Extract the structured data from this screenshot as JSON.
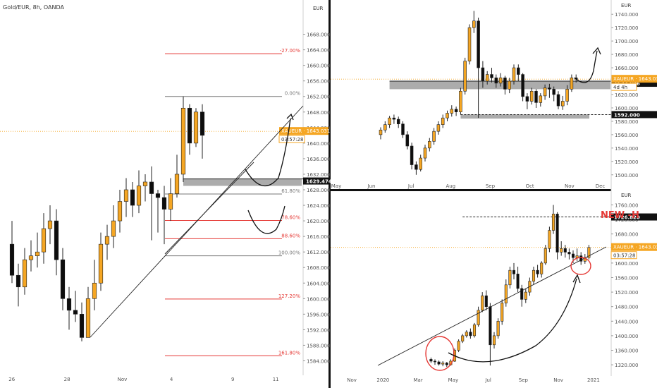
{
  "colors": {
    "up": "#f5a623",
    "down": "#0d0d0d",
    "wick": "#222222",
    "fib_red": "#e53935",
    "fib_gray": "#777777",
    "zone": "#9e9e9e",
    "separator": "#111111",
    "axis_text": "#555555",
    "price_tag": "#f5a623",
    "new_high": "#e53935"
  },
  "chart_data": [
    {
      "id": "left",
      "type": "candlestick",
      "title": "Gold/EUR, 8h, OANDA",
      "currency_label": "EUR",
      "ylim": [
        1581,
        1675
      ],
      "y_ticks": [
        {
          "v": 1668,
          "label": "1668.000"
        },
        {
          "v": 1664,
          "label": "1664.000"
        },
        {
          "v": 1660,
          "label": "1660.000"
        },
        {
          "v": 1656,
          "label": "1656.000"
        },
        {
          "v": 1652,
          "label": "1652.000"
        },
        {
          "v": 1648,
          "label": "1648.000"
        },
        {
          "v": 1644,
          "label": "1644.000"
        },
        {
          "v": 1640,
          "label": "1640.000"
        },
        {
          "v": 1636,
          "label": "1636.000"
        },
        {
          "v": 1632,
          "label": "1632.000"
        },
        {
          "v": 1628,
          "label": "1628.000"
        },
        {
          "v": 1624,
          "label": "1624.000"
        },
        {
          "v": 1620,
          "label": "1620.000"
        },
        {
          "v": 1616,
          "label": "1616.000"
        },
        {
          "v": 1612,
          "label": "1612.000"
        },
        {
          "v": 1608,
          "label": "1608.000"
        },
        {
          "v": 1604,
          "label": "1604.000"
        },
        {
          "v": 1600,
          "label": "1600.000"
        },
        {
          "v": 1596,
          "label": "1596.000"
        },
        {
          "v": 1592,
          "label": "1592.000"
        },
        {
          "v": 1588,
          "label": "1588.000"
        },
        {
          "v": 1584,
          "label": "1584.000"
        }
      ],
      "x_ticks": [
        {
          "i": 1,
          "label": "26"
        },
        {
          "i": 10,
          "label": "28"
        },
        {
          "i": 19,
          "label": "Nov"
        },
        {
          "i": 27,
          "label": "4"
        },
        {
          "i": 37,
          "label": "9"
        },
        {
          "i": 44,
          "label": "11"
        }
      ],
      "x_range": [
        0,
        48
      ],
      "candles": [
        [
          1614,
          1606,
          1620,
          1604
        ],
        [
          1606,
          1603,
          1609,
          1598
        ],
        [
          1603,
          1610,
          1613,
          1601
        ],
        [
          1610,
          1611,
          1615,
          1607
        ],
        [
          1611,
          1612,
          1617,
          1608
        ],
        [
          1612,
          1618,
          1622,
          1609
        ],
        [
          1618,
          1620,
          1624,
          1614
        ],
        [
          1620,
          1610,
          1623,
          1606
        ],
        [
          1610,
          1600,
          1613,
          1597
        ],
        [
          1600,
          1597,
          1603,
          1592
        ],
        [
          1597,
          1596,
          1602,
          1594
        ],
        [
          1596,
          1590,
          1599,
          1589
        ],
        [
          1590,
          1600,
          1603,
          1590
        ],
        [
          1600,
          1604,
          1610,
          1597
        ],
        [
          1604,
          1614,
          1617,
          1602
        ],
        [
          1614,
          1616,
          1619,
          1610
        ],
        [
          1616,
          1620,
          1624,
          1613
        ],
        [
          1620,
          1625,
          1628,
          1617
        ],
        [
          1625,
          1628,
          1631,
          1621
        ],
        [
          1628,
          1624,
          1630,
          1621
        ],
        [
          1624,
          1629,
          1633,
          1622
        ],
        [
          1629,
          1630,
          1632,
          1625
        ],
        [
          1630,
          1627,
          1634,
          1615
        ],
        [
          1627,
          1626,
          1628,
          1617
        ],
        [
          1626,
          1623,
          1629,
          1614
        ],
        [
          1623,
          1627,
          1631,
          1620
        ],
        [
          1627,
          1632,
          1637,
          1626
        ],
        [
          1632,
          1649,
          1652,
          1630
        ],
        [
          1649,
          1640,
          1650,
          1637
        ],
        [
          1640,
          1648,
          1649,
          1639
        ],
        [
          1648,
          1642,
          1650,
          1636
        ]
      ],
      "candle_index_offset": 0,
      "fib_levels": [
        {
          "v": 1663.0,
          "label": "-27.00%",
          "color": "red"
        },
        {
          "v": 1652.0,
          "label": "0.00%",
          "color": "gray"
        },
        {
          "v": 1626.9,
          "label": "61.80%",
          "color": "gray"
        },
        {
          "v": 1620.1,
          "label": "78.60%",
          "color": "red"
        },
        {
          "v": 1615.4,
          "label": "88.60%",
          "color": "red"
        },
        {
          "v": 1611.0,
          "label": "100.00%",
          "color": "gray"
        },
        {
          "v": 1599.9,
          "label": "127.20%",
          "color": "red"
        },
        {
          "v": 1585.3,
          "label": "161.80%",
          "color": "red"
        }
      ],
      "zone": {
        "from": 1629.0,
        "to": 1630.8,
        "label": "1629.474"
      },
      "dotted_price": 1643.031,
      "price_tag": {
        "label": "XAUEUR · 1643.031",
        "sub": "03:57:28"
      }
    },
    {
      "id": "top-right",
      "type": "candlestick",
      "currency_label": "EUR",
      "ylim": [
        1485,
        1755
      ],
      "y_ticks": [
        {
          "v": 1740,
          "label": "1740.000"
        },
        {
          "v": 1720,
          "label": "1720.000"
        },
        {
          "v": 1700,
          "label": "1700.000"
        },
        {
          "v": 1680,
          "label": "1680.000"
        },
        {
          "v": 1660,
          "label": "1660.000"
        },
        {
          "v": 1640,
          "label": "1640.000"
        },
        {
          "v": 1620,
          "label": "1620.000"
        },
        {
          "v": 1600,
          "label": "1600.000"
        },
        {
          "v": 1580,
          "label": "1580.000"
        },
        {
          "v": 1560,
          "label": "1560.000"
        },
        {
          "v": 1540,
          "label": "1540.000"
        },
        {
          "v": 1520,
          "label": "1520.000"
        },
        {
          "v": 1500,
          "label": "1500.000"
        }
      ],
      "x_ticks": [
        {
          "i": 0,
          "label": "May"
        },
        {
          "i": 8,
          "label": "Jun"
        },
        {
          "i": 17,
          "label": "Jul"
        },
        {
          "i": 26,
          "label": "Aug"
        },
        {
          "i": 35,
          "label": "Sep"
        },
        {
          "i": 44,
          "label": "Oct"
        },
        {
          "i": 53,
          "label": "Nov"
        },
        {
          "i": 60,
          "label": "Dec"
        }
      ],
      "x_range": [
        0,
        62
      ],
      "candles": [
        [
          1560,
          1567,
          1571,
          1553
        ],
        [
          1567,
          1575,
          1580,
          1563
        ],
        [
          1575,
          1585,
          1588,
          1570
        ],
        [
          1585,
          1583,
          1590,
          1576
        ],
        [
          1583,
          1576,
          1587,
          1570
        ],
        [
          1576,
          1560,
          1580,
          1555
        ],
        [
          1560,
          1543,
          1565,
          1538
        ],
        [
          1543,
          1515,
          1548,
          1508
        ],
        [
          1515,
          1508,
          1520,
          1500
        ],
        [
          1508,
          1525,
          1530,
          1505
        ],
        [
          1525,
          1540,
          1545,
          1520
        ],
        [
          1540,
          1550,
          1555,
          1535
        ],
        [
          1550,
          1565,
          1570,
          1545
        ],
        [
          1565,
          1575,
          1580,
          1560
        ],
        [
          1575,
          1585,
          1590,
          1570
        ],
        [
          1585,
          1592,
          1596,
          1580
        ],
        [
          1592,
          1598,
          1604,
          1587
        ],
        [
          1598,
          1594,
          1602,
          1588
        ],
        [
          1594,
          1625,
          1630,
          1590
        ],
        [
          1625,
          1670,
          1675,
          1620
        ],
        [
          1670,
          1720,
          1725,
          1665
        ],
        [
          1720,
          1730,
          1745,
          1712
        ],
        [
          1730,
          1660,
          1735,
          1585
        ],
        [
          1660,
          1640,
          1670,
          1630
        ],
        [
          1640,
          1650,
          1655,
          1635
        ],
        [
          1650,
          1645,
          1660,
          1638
        ],
        [
          1645,
          1637,
          1650,
          1630
        ],
        [
          1637,
          1645,
          1652,
          1632
        ],
        [
          1645,
          1628,
          1648,
          1620
        ],
        [
          1628,
          1640,
          1645,
          1622
        ],
        [
          1640,
          1660,
          1665,
          1635
        ],
        [
          1660,
          1650,
          1665,
          1640
        ],
        [
          1650,
          1617,
          1652,
          1610
        ],
        [
          1617,
          1610,
          1622,
          1598
        ],
        [
          1610,
          1625,
          1630,
          1605
        ],
        [
          1625,
          1608,
          1628,
          1600
        ],
        [
          1608,
          1618,
          1622,
          1602
        ],
        [
          1618,
          1630,
          1635,
          1612
        ],
        [
          1630,
          1628,
          1636,
          1615
        ],
        [
          1628,
          1620,
          1632,
          1610
        ],
        [
          1620,
          1603,
          1625,
          1598
        ],
        [
          1603,
          1610,
          1618,
          1597
        ],
        [
          1610,
          1628,
          1634,
          1604
        ],
        [
          1628,
          1645,
          1650,
          1624
        ],
        [
          1645,
          1643,
          1650,
          1638
        ]
      ],
      "candle_index_offset": 10,
      "zone": {
        "from": 1628,
        "to": 1640,
        "label": "1633.086"
      },
      "zone_lower": {
        "from": 1584,
        "to": 1590,
        "label": "1592.000"
      },
      "dotted_price": 1643.031,
      "price_tag": {
        "label": "XAUEUR · 1643.031",
        "sub": "4d 4h"
      }
    },
    {
      "id": "bottom-right",
      "type": "candlestick",
      "currency_label": "EUR",
      "title_annotation": "NEW -H",
      "ylim": [
        1295,
        1790
      ],
      "y_ticks": [
        {
          "v": 1760,
          "label": "1760.000"
        },
        {
          "v": 1720,
          "label": "1720.000"
        },
        {
          "v": 1680,
          "label": "1680.000"
        },
        {
          "v": 1640,
          "label": "1640.000"
        },
        {
          "v": 1600,
          "label": "1600.000"
        },
        {
          "v": 1560,
          "label": "1560.000"
        },
        {
          "v": 1520,
          "label": "1520.000"
        },
        {
          "v": 1480,
          "label": "1480.000"
        },
        {
          "v": 1440,
          "label": "1440.000"
        },
        {
          "v": 1400,
          "label": "1400.000"
        },
        {
          "v": 1360,
          "label": "1360.000"
        },
        {
          "v": 1320,
          "label": "1320.000"
        }
      ],
      "x_ticks": [
        {
          "i": 4,
          "label": "Nov"
        },
        {
          "i": 12,
          "label": "2020"
        },
        {
          "i": 21,
          "label": "Mar"
        },
        {
          "i": 30,
          "label": "May"
        },
        {
          "i": 39,
          "label": "Jul"
        },
        {
          "i": 48,
          "label": "Sep"
        },
        {
          "i": 57,
          "label": "Nov"
        },
        {
          "i": 66,
          "label": "2021"
        }
      ],
      "x_range": [
        0,
        70
      ],
      "candles": [
        [
          1335,
          1330,
          1340,
          1325
        ],
        [
          1330,
          1328,
          1335,
          1320
        ],
        [
          1328,
          1322,
          1332,
          1318
        ],
        [
          1322,
          1325,
          1330,
          1316
        ],
        [
          1325,
          1320,
          1328,
          1314
        ],
        [
          1320,
          1330,
          1335,
          1318
        ],
        [
          1330,
          1360,
          1365,
          1328
        ],
        [
          1360,
          1385,
          1390,
          1355
        ],
        [
          1385,
          1400,
          1405,
          1380
        ],
        [
          1400,
          1410,
          1415,
          1395
        ],
        [
          1410,
          1400,
          1420,
          1392
        ],
        [
          1400,
          1430,
          1435,
          1395
        ],
        [
          1430,
          1470,
          1480,
          1425
        ],
        [
          1470,
          1510,
          1520,
          1465
        ],
        [
          1510,
          1480,
          1525,
          1470
        ],
        [
          1480,
          1375,
          1490,
          1318
        ],
        [
          1375,
          1400,
          1410,
          1365
        ],
        [
          1400,
          1440,
          1448,
          1392
        ],
        [
          1440,
          1490,
          1500,
          1430
        ],
        [
          1490,
          1540,
          1555,
          1480
        ],
        [
          1540,
          1580,
          1590,
          1530
        ],
        [
          1580,
          1570,
          1600,
          1555
        ],
        [
          1570,
          1530,
          1590,
          1520
        ],
        [
          1530,
          1500,
          1540,
          1480
        ],
        [
          1500,
          1520,
          1530,
          1490
        ],
        [
          1520,
          1550,
          1560,
          1510
        ],
        [
          1550,
          1580,
          1590,
          1540
        ],
        [
          1580,
          1570,
          1595,
          1560
        ],
        [
          1570,
          1600,
          1605,
          1560
        ],
        [
          1600,
          1640,
          1650,
          1595
        ],
        [
          1640,
          1690,
          1700,
          1630
        ],
        [
          1690,
          1735,
          1760,
          1680
        ],
        [
          1735,
          1630,
          1740,
          1610
        ],
        [
          1630,
          1640,
          1660,
          1620
        ],
        [
          1640,
          1630,
          1650,
          1615
        ],
        [
          1630,
          1625,
          1640,
          1610
        ],
        [
          1625,
          1615,
          1635,
          1600
        ],
        [
          1615,
          1620,
          1640,
          1605
        ],
        [
          1620,
          1605,
          1630,
          1595
        ],
        [
          1605,
          1615,
          1625,
          1598
        ],
        [
          1615,
          1643,
          1650,
          1610
        ]
      ],
      "candle_index_offset": 24,
      "resistance": {
        "v": 1726.82,
        "label": "1726.820"
      },
      "dotted_price": 1643.031,
      "price_tag": {
        "label": "XAUEUR · 1643.031",
        "sub": "03:57:28"
      }
    }
  ]
}
